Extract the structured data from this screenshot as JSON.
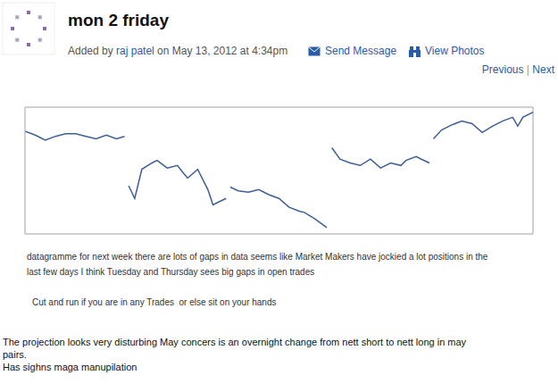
{
  "header": {
    "title": "mon 2 friday",
    "byline": {
      "prefix": "Added by",
      "author": "raj patel",
      "suffix": "on May 13, 2012 at 4:34pm"
    },
    "actions": [
      "Send Message",
      "View Photos"
    ],
    "nav": [
      "Previous",
      "|",
      "Next"
    ]
  },
  "chart_data": {
    "type": "line",
    "x": [
      0,
      0.1,
      0.2,
      0.3,
      0.4,
      0.5,
      0.6,
      0.7,
      0.8,
      0.9,
      0.98,
      1.0,
      1.02,
      1.08,
      1.15,
      1.25,
      1.3,
      1.4,
      1.5,
      1.55,
      1.6,
      1.7,
      1.8,
      1.85,
      1.9,
      1.98,
      2.0,
      2.02,
      2.1,
      2.2,
      2.3,
      2.4,
      2.5,
      2.6,
      2.7,
      2.75,
      2.85,
      2.92,
      2.97,
      3.0,
      3.02,
      3.1,
      3.2,
      3.3,
      3.4,
      3.5,
      3.6,
      3.7,
      3.75,
      3.85,
      3.9,
      3.98,
      4.0,
      4.02,
      4.1,
      4.2,
      4.3,
      4.4,
      4.5,
      4.6,
      4.7,
      4.8,
      4.85,
      4.9,
      5.0
    ],
    "values": [
      81,
      78,
      74,
      77,
      79,
      79,
      77,
      75,
      78,
      75,
      77,
      null,
      38,
      28,
      51,
      56,
      58,
      52,
      54,
      49,
      44,
      51,
      35,
      23,
      25,
      28,
      null,
      37,
      34,
      33,
      35,
      31,
      28,
      21,
      18,
      17,
      12,
      8,
      5,
      null,
      68,
      59,
      56,
      54,
      59,
      52,
      56,
      54,
      58,
      61,
      59,
      56,
      null,
      75,
      82,
      86,
      89,
      87,
      80,
      85,
      89,
      92,
      85,
      92,
      96
    ],
    "color": "#3d5f99",
    "xlim": [
      0,
      5
    ],
    "xticks": [
      0,
      1,
      2,
      3,
      4,
      5
    ],
    "ylim": [
      0,
      100
    ],
    "yticks": [
      5,
      20,
      35,
      50,
      65,
      80,
      95
    ],
    "grid": true,
    "tick_labels": false
  },
  "note": {
    "lines": [
      "datagramme for next week there are lots of gaps in data seems like Market Makers have jockied a lot positions in the",
      "last few days I think Tuesday and Thursday sees big gaps in open trades"
    ],
    "advice": "Cut and run if you are in any Trades  or else sit on your hands"
  },
  "comment": {
    "lines": [
      "The projection looks very disturbing May concers is an overnight change from nett short to nett long in may",
      "pairs.",
      "Has sighns maga manupilation"
    ]
  }
}
